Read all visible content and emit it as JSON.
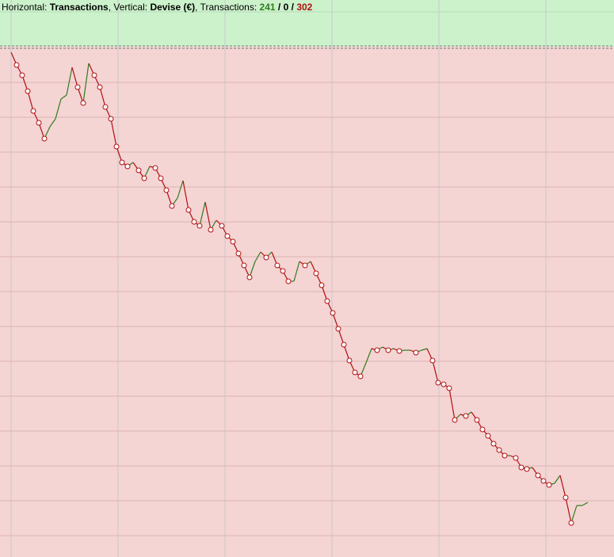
{
  "header": {
    "horizontal_label": "Horizontal:",
    "horizontal": "Transactions",
    "vertical_label": ", Vertical:",
    "vertical": "Devise (€)",
    "transactions_label": ", Transactions:",
    "wins": 241,
    "separator": "/",
    "draws": 0,
    "losses": 302
  },
  "chart_data": {
    "type": "line",
    "up_color": "#2e7d1e",
    "down_color": "#b01010",
    "marker_fill": "#ffffff",
    "grid": true,
    "ylim": [
      0,
      640
    ],
    "values": [
      637,
      621,
      608,
      588,
      563,
      548,
      528,
      543,
      553,
      578,
      583,
      618,
      593,
      573,
      623,
      608,
      593,
      568,
      553,
      518,
      498,
      493,
      498,
      488,
      478,
      493,
      491,
      478,
      463,
      443,
      453,
      475,
      438,
      423,
      418,
      448,
      413,
      425,
      418,
      405,
      398,
      383,
      368,
      353,
      373,
      385,
      378,
      385,
      368,
      361,
      348,
      348,
      373,
      368,
      373,
      358,
      343,
      323,
      308,
      288,
      268,
      248,
      233,
      228,
      245,
      263,
      261,
      265,
      261,
      263,
      260,
      261,
      261,
      258,
      261,
      263,
      248,
      220,
      218,
      213,
      173,
      180,
      178,
      183,
      173,
      161,
      153,
      143,
      135,
      128,
      128,
      125,
      113,
      111,
      113,
      103,
      96,
      91,
      93,
      103,
      75,
      43,
      65,
      65,
      69
    ]
  }
}
